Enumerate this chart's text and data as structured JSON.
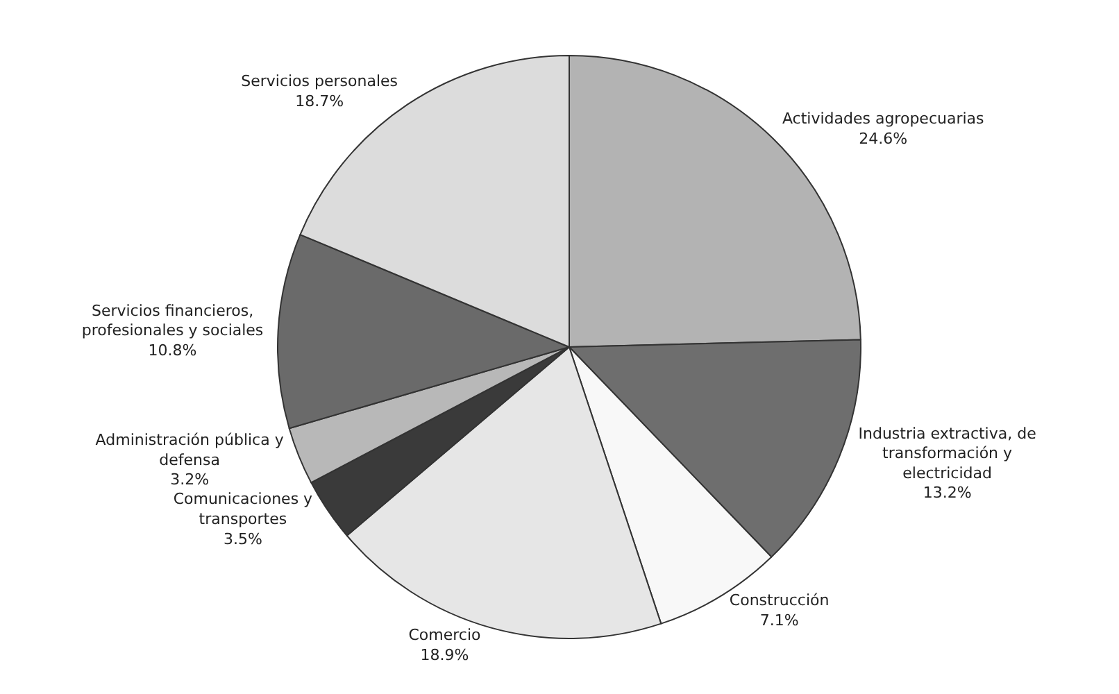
{
  "chart_data": {
    "type": "pie",
    "categories": [
      "Actividades agropecuarias",
      "Industria extractiva, de transformación y electricidad",
      "Construcción",
      "Comercio",
      "Comunicaciones y transportes",
      "Administración pública y defensa",
      "Servicios financieros, profesionales y sociales",
      "Servicios personales"
    ],
    "values": [
      24.6,
      13.2,
      7.1,
      18.9,
      3.5,
      3.2,
      10.8,
      18.7
    ],
    "value_labels": [
      "24.6%",
      "13.2%",
      "7.1%",
      "18.9%",
      "3.5%",
      "3.2%",
      "10.8%",
      "18.7%"
    ],
    "colors": [
      "#b3b3b3",
      "#6e6e6e",
      "#f8f8f8",
      "#e6e6e6",
      "#3a3a3a",
      "#b8b8b8",
      "#6a6a6a",
      "#dcdcdc"
    ],
    "legend": false
  }
}
